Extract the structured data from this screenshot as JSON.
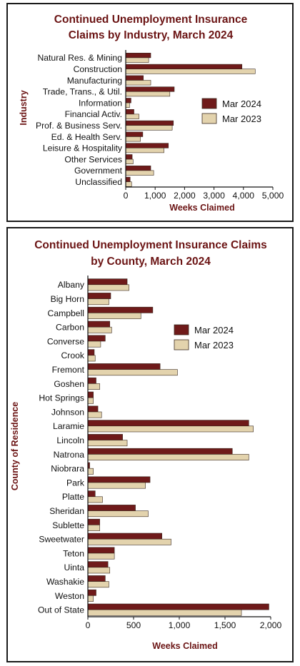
{
  "colors": {
    "mar2024": "#6f1a1a",
    "mar2023": "#e3d3ad",
    "title": "#6b1414",
    "stroke": "#3a2a20"
  },
  "chart_data": [
    {
      "type": "bar",
      "orientation": "horizontal",
      "title_lines": [
        "Continued Unemployment Insurance",
        "Claims by Industry, March 2024"
      ],
      "xlabel": "Weeks Claimed",
      "ylabel": "Industry",
      "xlim": [
        0,
        5000
      ],
      "xticks": [
        0,
        1000,
        2000,
        3000,
        4000,
        5000
      ],
      "xtick_labels": [
        "0",
        "1,000",
        "2,000",
        "3,000",
        "4,000",
        "5,000"
      ],
      "legend_position": "right",
      "grid": false,
      "categories": [
        "Natural Res. & Mining",
        "Construction",
        "Manufacturing",
        "Trade, Trans., & Util.",
        "Information",
        "Financial Activ.",
        "Prof. & Business Serv.",
        "Ed. & Health Serv.",
        "Leisure & Hospitality",
        "Other Services",
        "Government",
        "Unclassified"
      ],
      "series": [
        {
          "name": "Mar 2024",
          "values": [
            850,
            3950,
            600,
            1650,
            180,
            280,
            1620,
            580,
            1450,
            220,
            850,
            150
          ]
        },
        {
          "name": "Mar 2023",
          "values": [
            780,
            4400,
            850,
            1500,
            130,
            450,
            1580,
            500,
            1300,
            250,
            950,
            200
          ]
        }
      ]
    },
    {
      "type": "bar",
      "orientation": "horizontal",
      "title_lines": [
        "Continued Unemployment Insurance Claims",
        "by County, March 2024"
      ],
      "xlabel": "Weeks Claimed",
      "ylabel": "County of Residence",
      "xlim": [
        0,
        2000
      ],
      "xticks": [
        0,
        500,
        1000,
        1500,
        2000
      ],
      "xtick_labels": [
        "0",
        "500",
        "1,000",
        "1,500",
        "2,000"
      ],
      "legend_position": "right",
      "grid": false,
      "categories": [
        "Albany",
        "Big Horn",
        "Campbell",
        "Carbon",
        "Converse",
        "Crook",
        "Fremont",
        "Goshen",
        "Hot Springs",
        "Johnson",
        "Laramie",
        "Lincoln",
        "Natrona",
        "Niobrara",
        "Park",
        "Platte",
        "Sheridan",
        "Sublette",
        "Sweetwater",
        "Teton",
        "Uinta",
        "Washakie",
        "Weston",
        "Out of State"
      ],
      "series": [
        {
          "name": "Mar 2024",
          "values": [
            430,
            250,
            710,
            240,
            190,
            70,
            790,
            90,
            60,
            110,
            1760,
            380,
            1580,
            20,
            680,
            80,
            520,
            130,
            810,
            290,
            220,
            190,
            90,
            1980
          ]
        },
        {
          "name": "Mar 2023",
          "values": [
            450,
            230,
            580,
            260,
            140,
            80,
            980,
            130,
            60,
            150,
            1810,
            430,
            1760,
            60,
            630,
            160,
            660,
            130,
            910,
            290,
            240,
            230,
            60,
            1680
          ]
        }
      ]
    }
  ]
}
